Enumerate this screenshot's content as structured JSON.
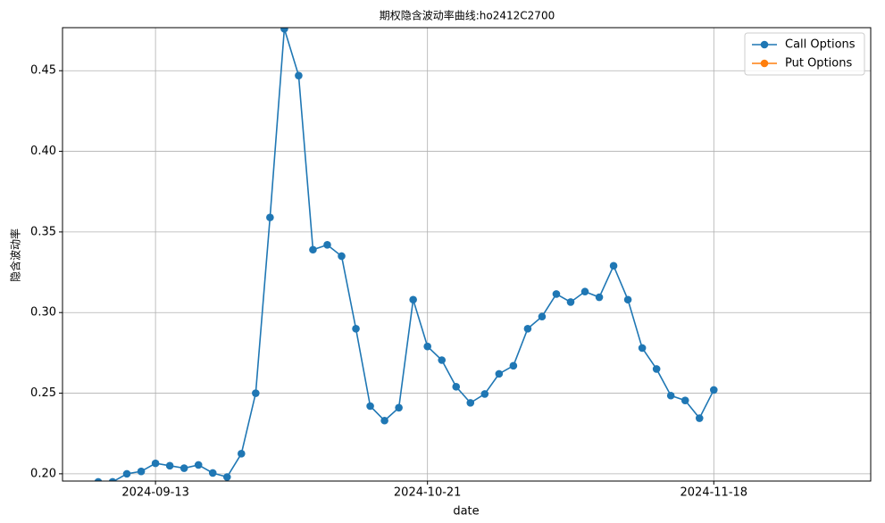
{
  "chart_data": {
    "type": "line",
    "title": "期权隐含波动率曲线:ho2412C2700",
    "x_label": "date",
    "y_label": "隐含波动率",
    "categories": [
      null,
      null,
      null,
      null,
      "2024-09-13",
      null,
      null,
      null,
      null,
      null,
      null,
      null,
      null,
      null,
      null,
      null,
      null,
      null,
      null,
      null,
      null,
      null,
      null,
      "2024-10-21",
      null,
      null,
      null,
      null,
      null,
      null,
      null,
      null,
      null,
      null,
      null,
      null,
      null,
      null,
      null,
      null,
      null,
      null,
      null,
      "2024-11-18"
    ],
    "series": [
      {
        "name": "Call Options",
        "color": "#1f77b4",
        "values": [
          0.195,
          0.195,
          0.2,
          0.2015,
          0.2065,
          0.205,
          0.2035,
          0.2055,
          0.2005,
          0.198,
          0.2125,
          0.25,
          0.359,
          0.476,
          0.447,
          0.339,
          0.342,
          0.335,
          0.29,
          0.242,
          0.233,
          0.241,
          0.308,
          0.279,
          0.2705,
          0.254,
          0.244,
          0.2495,
          0.262,
          0.267,
          0.29,
          0.2975,
          0.3115,
          0.3065,
          0.313,
          0.3095,
          0.329,
          0.308,
          0.278,
          0.265,
          0.2485,
          0.2455,
          0.2345,
          0.252
        ]
      },
      {
        "name": "Put Options",
        "color": "#ff7f0e",
        "values": [
          null,
          null,
          null,
          null,
          null,
          null,
          null,
          null,
          null,
          null,
          null,
          null,
          null,
          null,
          null,
          null,
          null,
          null,
          null,
          null,
          null,
          null,
          null,
          null,
          null,
          null,
          null,
          null,
          null,
          null,
          null,
          null,
          null,
          null,
          null,
          null,
          null,
          null,
          null,
          null,
          null,
          null,
          null,
          null
        ]
      }
    ],
    "ylim": [
      0.1955,
      0.4767
    ],
    "yticks": [
      {
        "value": 0.2,
        "label": "0.20"
      },
      0.25,
      {
        "value": 0.3,
        "label": "0.30"
      },
      0.35,
      {
        "value": 0.4,
        "label": "0.40"
      },
      0.45
    ],
    "grid": true,
    "legend": "upper right"
  }
}
